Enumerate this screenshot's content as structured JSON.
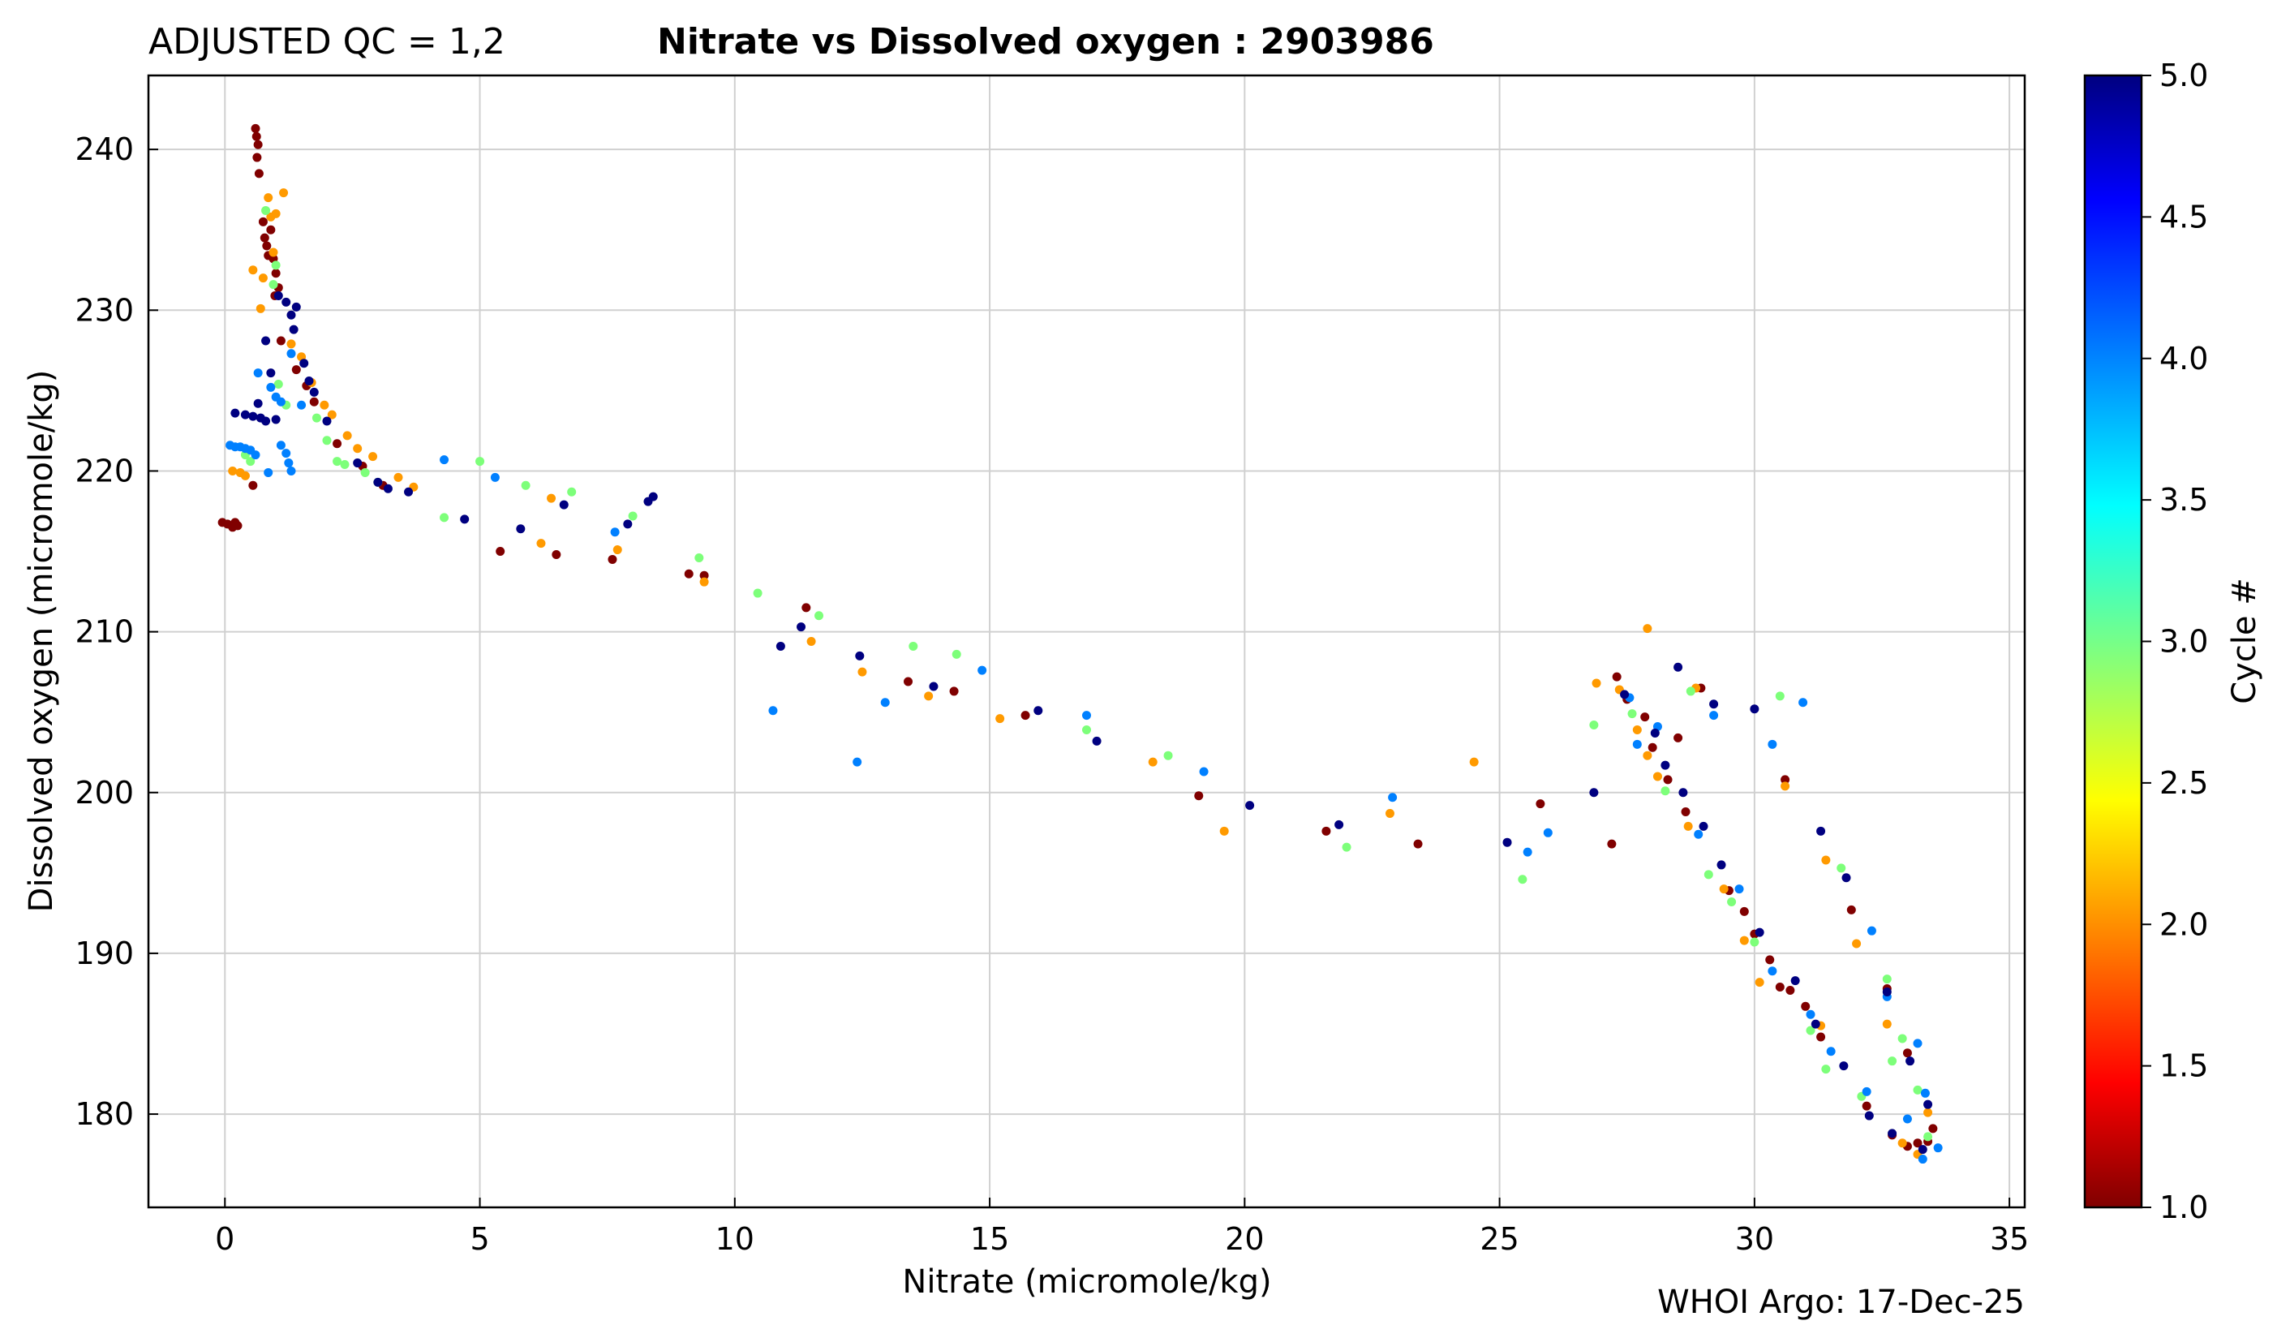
{
  "chart_data": {
    "type": "scatter",
    "title_left": "ADJUSTED QC = 1,2",
    "title": "Nitrate vs Dissolved oxygen : 2903986",
    "xlabel": "Nitrate  (micromole/kg)",
    "ylabel": "Dissolved oxygen  (micromole/kg)",
    "footer": "WHOI Argo: 17-Dec-25",
    "xlim": [
      -1.5,
      35.3
    ],
    "ylim": [
      174.2,
      244.6
    ],
    "xticks": [
      "0",
      "5",
      "10",
      "15",
      "20",
      "25",
      "30",
      "35"
    ],
    "xtick_values": [
      0,
      5,
      10,
      15,
      20,
      25,
      30,
      35
    ],
    "yticks": [
      "180",
      "190",
      "200",
      "210",
      "220",
      "230",
      "240"
    ],
    "ytick_values": [
      180,
      190,
      200,
      210,
      220,
      230,
      240
    ],
    "grid": true,
    "colorbar": {
      "label": "Cycle #",
      "range": [
        1.0,
        5.0
      ],
      "ticks": [
        "1.0",
        "1.5",
        "2.0",
        "2.5",
        "3.0",
        "3.5",
        "4.0",
        "4.5",
        "5.0"
      ],
      "tick_values": [
        1.0,
        1.5,
        2.0,
        2.5,
        3.0,
        3.5,
        4.0,
        4.5,
        5.0
      ],
      "colormap": "jet"
    },
    "colors": {
      "cycle_1": "#800000",
      "cycle_2": "#ff9a00",
      "cycle_3": "#7dff7a",
      "cycle_4": "#0080ff",
      "cycle_5": "#000080"
    },
    "series": [
      {
        "name": "Cycle 1",
        "cycle": 1,
        "points": [
          [
            -0.05,
            216.8
          ],
          [
            0.05,
            216.7
          ],
          [
            0.15,
            216.5
          ],
          [
            0.2,
            216.8
          ],
          [
            0.25,
            216.6
          ],
          [
            0.6,
            241.3
          ],
          [
            0.62,
            240.8
          ],
          [
            0.65,
            240.3
          ],
          [
            0.63,
            239.5
          ],
          [
            0.67,
            238.5
          ],
          [
            0.75,
            235.5
          ],
          [
            0.78,
            234.5
          ],
          [
            0.82,
            234.0
          ],
          [
            0.85,
            233.4
          ],
          [
            0.9,
            235.0
          ],
          [
            0.95,
            233.2
          ],
          [
            1.0,
            232.3
          ],
          [
            0.98,
            230.9
          ],
          [
            1.05,
            231.4
          ],
          [
            1.1,
            228.1
          ],
          [
            0.55,
            219.1
          ],
          [
            1.4,
            226.3
          ],
          [
            1.6,
            225.3
          ],
          [
            1.75,
            224.3
          ],
          [
            2.2,
            221.7
          ],
          [
            2.7,
            220.3
          ],
          [
            3.1,
            219.1
          ],
          [
            5.4,
            215.0
          ],
          [
            6.5,
            214.8
          ],
          [
            7.6,
            214.5
          ],
          [
            9.1,
            213.6
          ],
          [
            9.4,
            213.5
          ],
          [
            11.4,
            211.5
          ],
          [
            13.4,
            206.9
          ],
          [
            14.3,
            206.3
          ],
          [
            15.7,
            204.8
          ],
          [
            19.1,
            199.8
          ],
          [
            21.6,
            197.6
          ],
          [
            23.4,
            196.8
          ],
          [
            25.8,
            199.3
          ],
          [
            27.2,
            196.8
          ],
          [
            27.3,
            207.2
          ],
          [
            27.5,
            205.8
          ],
          [
            27.85,
            204.7
          ],
          [
            28.0,
            202.8
          ],
          [
            28.3,
            200.8
          ],
          [
            28.5,
            203.4
          ],
          [
            28.65,
            198.8
          ],
          [
            28.95,
            206.5
          ],
          [
            29.5,
            193.9
          ],
          [
            29.8,
            192.6
          ],
          [
            30.0,
            191.2
          ],
          [
            30.3,
            189.6
          ],
          [
            30.5,
            187.9
          ],
          [
            30.7,
            187.7
          ],
          [
            30.6,
            200.8
          ],
          [
            31.0,
            186.7
          ],
          [
            31.3,
            184.8
          ],
          [
            31.9,
            192.7
          ],
          [
            32.2,
            180.5
          ],
          [
            32.6,
            187.8
          ],
          [
            32.7,
            178.7
          ],
          [
            33.0,
            178.0
          ],
          [
            33.0,
            183.8
          ],
          [
            33.2,
            178.2
          ],
          [
            33.5,
            179.1
          ],
          [
            33.4,
            178.3
          ]
        ]
      },
      {
        "name": "Cycle 2",
        "cycle": 2,
        "points": [
          [
            0.15,
            220.0
          ],
          [
            0.3,
            219.9
          ],
          [
            0.4,
            219.7
          ],
          [
            0.55,
            232.5
          ],
          [
            0.7,
            230.1
          ],
          [
            0.75,
            232.0
          ],
          [
            0.85,
            237.0
          ],
          [
            0.9,
            235.8
          ],
          [
            0.95,
            233.6
          ],
          [
            1.0,
            236.0
          ],
          [
            1.15,
            237.3
          ],
          [
            1.3,
            227.9
          ],
          [
            1.5,
            227.1
          ],
          [
            1.7,
            225.5
          ],
          [
            1.95,
            224.1
          ],
          [
            2.1,
            223.5
          ],
          [
            2.4,
            222.2
          ],
          [
            2.6,
            221.4
          ],
          [
            2.9,
            220.9
          ],
          [
            3.4,
            219.6
          ],
          [
            3.7,
            219.0
          ],
          [
            6.2,
            215.5
          ],
          [
            6.4,
            218.3
          ],
          [
            7.7,
            215.1
          ],
          [
            9.4,
            213.1
          ],
          [
            11.5,
            209.4
          ],
          [
            12.5,
            207.5
          ],
          [
            13.8,
            206.0
          ],
          [
            15.2,
            204.6
          ],
          [
            18.2,
            201.9
          ],
          [
            19.6,
            197.6
          ],
          [
            22.85,
            198.7
          ],
          [
            24.5,
            201.9
          ],
          [
            26.9,
            206.8
          ],
          [
            27.35,
            206.4
          ],
          [
            27.7,
            203.9
          ],
          [
            27.9,
            210.2
          ],
          [
            27.9,
            202.3
          ],
          [
            28.1,
            201.0
          ],
          [
            28.7,
            197.9
          ],
          [
            29.4,
            194.0
          ],
          [
            29.8,
            190.8
          ],
          [
            30.1,
            188.2
          ],
          [
            30.6,
            200.4
          ],
          [
            31.3,
            185.5
          ],
          [
            31.4,
            195.8
          ],
          [
            32.0,
            190.6
          ],
          [
            32.6,
            185.6
          ],
          [
            32.9,
            178.2
          ],
          [
            33.4,
            180.1
          ],
          [
            28.85,
            206.5
          ],
          [
            33.2,
            177.5
          ]
        ]
      },
      {
        "name": "Cycle 3",
        "cycle": 3,
        "points": [
          [
            0.4,
            221.0
          ],
          [
            0.5,
            220.6
          ],
          [
            0.8,
            236.2
          ],
          [
            0.95,
            231.6
          ],
          [
            1.0,
            232.8
          ],
          [
            1.05,
            225.4
          ],
          [
            1.2,
            224.1
          ],
          [
            1.8,
            223.3
          ],
          [
            2.0,
            221.9
          ],
          [
            2.2,
            220.6
          ],
          [
            2.35,
            220.4
          ],
          [
            2.75,
            219.9
          ],
          [
            3.0,
            219.3
          ],
          [
            4.3,
            217.1
          ],
          [
            5.0,
            220.6
          ],
          [
            5.9,
            219.1
          ],
          [
            6.8,
            218.7
          ],
          [
            8.0,
            217.2
          ],
          [
            9.3,
            214.6
          ],
          [
            10.45,
            212.4
          ],
          [
            11.65,
            211.0
          ],
          [
            13.5,
            209.1
          ],
          [
            14.35,
            208.6
          ],
          [
            16.9,
            203.9
          ],
          [
            18.5,
            202.3
          ],
          [
            22.0,
            196.6
          ],
          [
            25.45,
            194.6
          ],
          [
            26.85,
            204.2
          ],
          [
            27.6,
            204.9
          ],
          [
            28.25,
            200.1
          ],
          [
            28.75,
            206.3
          ],
          [
            29.1,
            194.9
          ],
          [
            29.55,
            193.2
          ],
          [
            30.0,
            190.7
          ],
          [
            30.5,
            206.0
          ],
          [
            31.1,
            185.2
          ],
          [
            31.7,
            195.3
          ],
          [
            32.6,
            188.4
          ],
          [
            32.7,
            183.3
          ],
          [
            32.9,
            184.7
          ],
          [
            33.2,
            181.5
          ],
          [
            33.4,
            178.6
          ],
          [
            31.4,
            182.8
          ],
          [
            32.1,
            181.1
          ]
        ]
      },
      {
        "name": "Cycle 4",
        "cycle": 4,
        "points": [
          [
            0.1,
            221.6
          ],
          [
            0.2,
            221.5
          ],
          [
            0.3,
            221.5
          ],
          [
            0.4,
            221.4
          ],
          [
            0.5,
            221.3
          ],
          [
            0.6,
            221.0
          ],
          [
            0.65,
            226.1
          ],
          [
            0.85,
            219.9
          ],
          [
            0.9,
            225.2
          ],
          [
            1.0,
            224.6
          ],
          [
            1.1,
            224.3
          ],
          [
            1.1,
            221.6
          ],
          [
            1.2,
            221.1
          ],
          [
            1.25,
            220.5
          ],
          [
            1.3,
            220.0
          ],
          [
            1.3,
            227.3
          ],
          [
            1.5,
            224.1
          ],
          [
            4.3,
            220.7
          ],
          [
            5.3,
            219.6
          ],
          [
            7.65,
            216.2
          ],
          [
            10.75,
            205.1
          ],
          [
            12.4,
            201.9
          ],
          [
            12.95,
            205.6
          ],
          [
            14.85,
            207.6
          ],
          [
            16.9,
            204.8
          ],
          [
            19.2,
            201.3
          ],
          [
            22.9,
            199.7
          ],
          [
            25.55,
            196.3
          ],
          [
            25.95,
            197.5
          ],
          [
            27.55,
            205.9
          ],
          [
            27.7,
            203.0
          ],
          [
            28.1,
            204.1
          ],
          [
            28.9,
            197.4
          ],
          [
            29.2,
            204.8
          ],
          [
            29.7,
            194.0
          ],
          [
            30.35,
            203.0
          ],
          [
            30.35,
            188.9
          ],
          [
            30.95,
            205.6
          ],
          [
            31.1,
            186.2
          ],
          [
            31.5,
            183.9
          ],
          [
            32.2,
            181.4
          ],
          [
            32.3,
            191.4
          ],
          [
            32.6,
            187.3
          ],
          [
            33.2,
            184.4
          ],
          [
            33.35,
            181.3
          ],
          [
            33.3,
            177.2
          ],
          [
            33.6,
            177.9
          ],
          [
            33.0,
            179.7
          ]
        ]
      },
      {
        "name": "Cycle 5",
        "cycle": 5,
        "points": [
          [
            0.2,
            223.6
          ],
          [
            0.4,
            223.5
          ],
          [
            0.55,
            223.4
          ],
          [
            0.7,
            223.3
          ],
          [
            0.8,
            223.1
          ],
          [
            0.65,
            224.2
          ],
          [
            0.8,
            228.1
          ],
          [
            0.9,
            226.1
          ],
          [
            1.0,
            223.2
          ],
          [
            1.05,
            230.9
          ],
          [
            1.2,
            230.5
          ],
          [
            1.3,
            229.7
          ],
          [
            1.4,
            230.2
          ],
          [
            1.35,
            228.8
          ],
          [
            1.55,
            226.7
          ],
          [
            1.65,
            225.6
          ],
          [
            1.75,
            224.9
          ],
          [
            2.0,
            223.1
          ],
          [
            2.6,
            220.5
          ],
          [
            3.0,
            219.3
          ],
          [
            3.2,
            218.9
          ],
          [
            3.6,
            218.7
          ],
          [
            4.7,
            217.0
          ],
          [
            5.8,
            216.4
          ],
          [
            6.65,
            217.9
          ],
          [
            7.9,
            216.7
          ],
          [
            8.3,
            218.1
          ],
          [
            8.4,
            218.4
          ],
          [
            10.9,
            209.1
          ],
          [
            11.3,
            210.3
          ],
          [
            12.45,
            208.5
          ],
          [
            13.9,
            206.6
          ],
          [
            15.95,
            205.1
          ],
          [
            17.1,
            203.2
          ],
          [
            20.1,
            199.2
          ],
          [
            21.85,
            198.0
          ],
          [
            25.15,
            196.9
          ],
          [
            26.85,
            200.0
          ],
          [
            27.45,
            206.1
          ],
          [
            28.05,
            203.7
          ],
          [
            28.25,
            201.7
          ],
          [
            28.5,
            207.8
          ],
          [
            28.6,
            200.0
          ],
          [
            29.0,
            197.9
          ],
          [
            29.2,
            205.5
          ],
          [
            29.35,
            195.5
          ],
          [
            30.0,
            205.2
          ],
          [
            30.1,
            191.3
          ],
          [
            30.8,
            188.3
          ],
          [
            31.2,
            185.6
          ],
          [
            31.3,
            197.6
          ],
          [
            31.75,
            183.0
          ],
          [
            31.8,
            194.7
          ],
          [
            32.25,
            179.9
          ],
          [
            32.6,
            187.6
          ],
          [
            32.7,
            178.8
          ],
          [
            33.05,
            183.3
          ],
          [
            33.3,
            177.8
          ],
          [
            33.4,
            180.6
          ]
        ]
      }
    ]
  }
}
